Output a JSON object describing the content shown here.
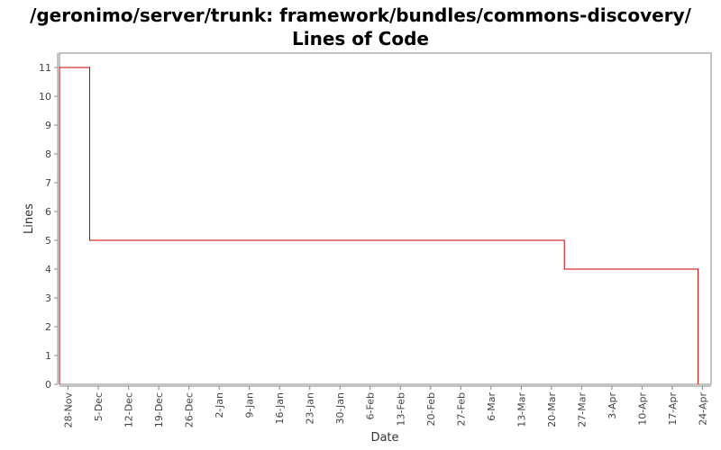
{
  "chart_data": {
    "type": "line",
    "step": true,
    "title": "/geronimo/server/trunk: framework/bundles/commons-discovery/ Lines of Code",
    "xlabel": "Date",
    "ylabel": "Lines",
    "ylim": [
      0,
      11
    ],
    "yticks": [
      0,
      1,
      2,
      3,
      4,
      5,
      6,
      7,
      8,
      9,
      10,
      11
    ],
    "xticks": [
      "28-Nov",
      "5-Dec",
      "12-Dec",
      "19-Dec",
      "26-Dec",
      "2-Jan",
      "9-Jan",
      "16-Jan",
      "23-Jan",
      "30-Jan",
      "6-Feb",
      "13-Feb",
      "20-Feb",
      "27-Feb",
      "6-Mar",
      "13-Mar",
      "20-Mar",
      "27-Mar",
      "3-Apr",
      "10-Apr",
      "17-Apr",
      "24-Apr"
    ],
    "xrange": [
      "26-Nov",
      "26-Apr"
    ],
    "grid": false,
    "line_color": "#cc0000",
    "series": [
      {
        "x": [
          "26-Nov",
          "26-Nov",
          "3-Dec",
          "3-Dec",
          "23-Mar",
          "23-Mar",
          "23-Apr",
          "23-Apr"
        ],
        "y": [
          0,
          11,
          11,
          5,
          5,
          4,
          4,
          0
        ]
      }
    ]
  }
}
